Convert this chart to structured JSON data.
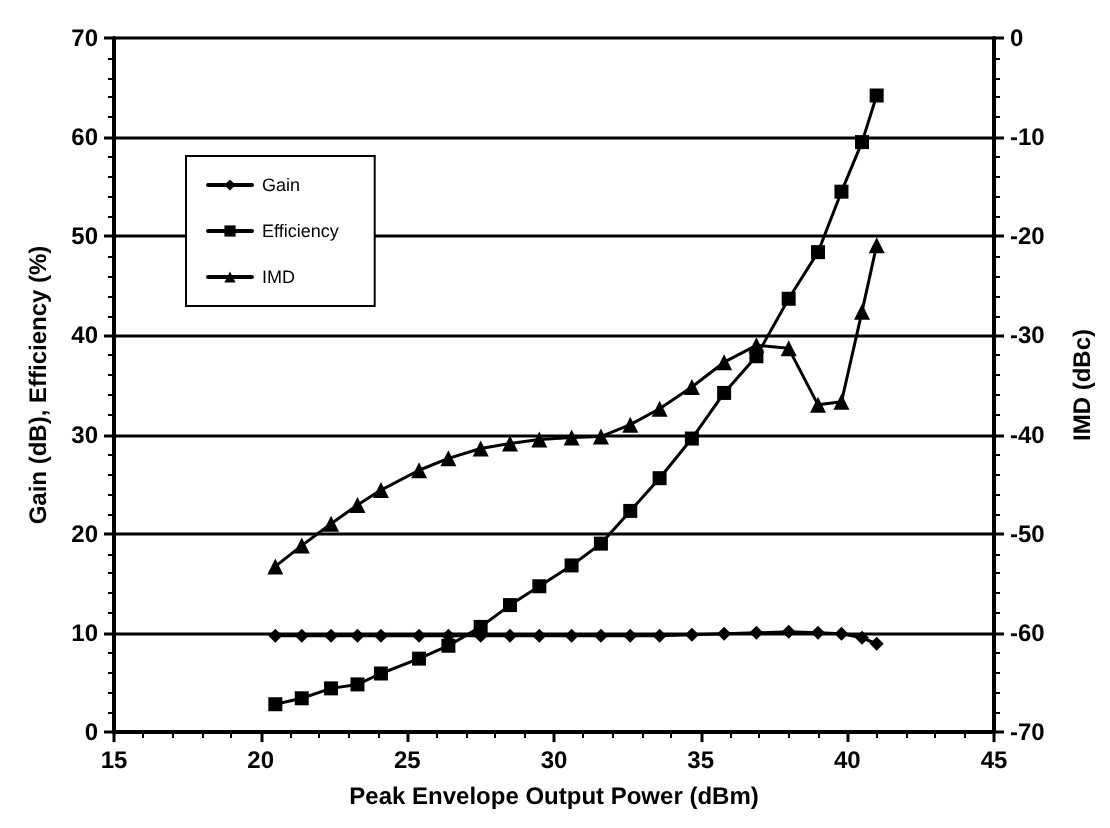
{
  "chart_data": {
    "type": "line",
    "xlabel": "Peak Envelope Output Power (dBm)",
    "ylabel": "Gain (dB), Efficiency (%)",
    "y2label": "IMD (dBc)",
    "x": [
      20.5,
      21.4,
      22.4,
      23.3,
      24.1,
      25.4,
      26.4,
      27.5,
      28.5,
      29.5,
      30.6,
      31.6,
      32.6,
      33.6,
      34.7,
      35.8,
      36.9,
      38.0,
      39.0,
      39.8,
      40.5,
      41.0
    ],
    "xlim": [
      15,
      45
    ],
    "xticks": [
      15,
      20,
      25,
      30,
      35,
      40,
      45
    ],
    "ylim": [
      0,
      70
    ],
    "yticks": [
      0,
      10,
      20,
      30,
      40,
      50,
      60,
      70
    ],
    "y2lim": [
      -70,
      0
    ],
    "y2ticks": [
      -70,
      -60,
      -50,
      -40,
      -30,
      -20,
      -10,
      0
    ],
    "grid": "y",
    "legend": "top left",
    "series": [
      {
        "name": "Gain",
        "color": "#000000",
        "marker": "diamond",
        "values": [
          9.7,
          9.7,
          9.7,
          9.7,
          9.7,
          9.7,
          9.7,
          9.7,
          9.7,
          9.7,
          9.7,
          9.7,
          9.7,
          9.7,
          9.8,
          9.9,
          10.0,
          10.1,
          10.0,
          9.9,
          9.5,
          8.9
        ]
      },
      {
        "name": "Efficiency",
        "color": "#000000",
        "marker": "square",
        "values": [
          2.8,
          3.4,
          4.4,
          4.8,
          5.9,
          7.4,
          8.7,
          10.6,
          12.8,
          14.7,
          16.8,
          19.0,
          22.3,
          25.6,
          29.6,
          34.2,
          37.9,
          43.7,
          48.4,
          54.5,
          59.5,
          64.2
        ]
      },
      {
        "name": "IMD",
        "color": "#000000",
        "marker": "triangle",
        "axis": "y2",
        "values": [
          -53.3,
          -51.2,
          -49.0,
          -47.1,
          -45.6,
          -43.6,
          -42.4,
          -41.4,
          -40.9,
          -40.5,
          -40.3,
          -40.2,
          -39.0,
          -37.4,
          -35.2,
          -32.7,
          -31.0,
          -31.3,
          -37.0,
          -36.7,
          -27.6,
          -20.9
        ]
      }
    ]
  }
}
